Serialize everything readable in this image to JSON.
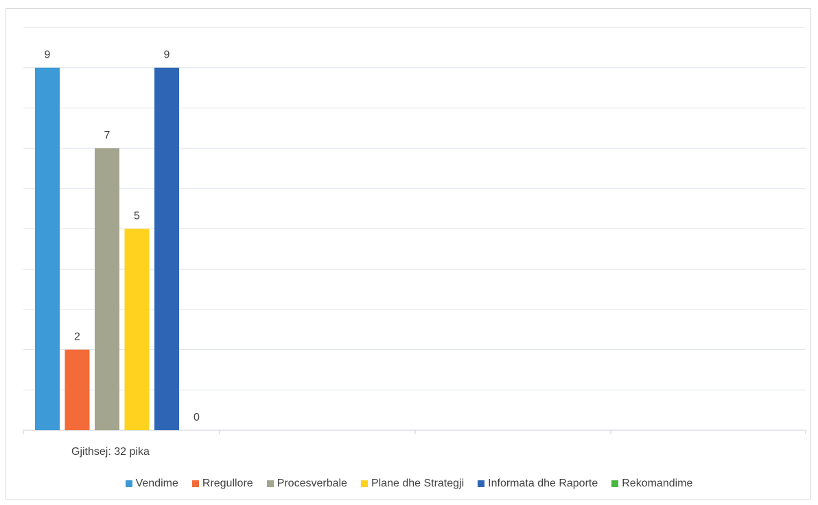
{
  "chart_data": {
    "type": "bar",
    "title": "",
    "xlabel": "",
    "ylabel": "",
    "ylim": [
      0,
      10
    ],
    "grid": true,
    "legend_position": "bottom",
    "series": [
      {
        "name": "Vendime",
        "values": [
          9
        ],
        "color": "#3d9ad6"
      },
      {
        "name": "Rregullore",
        "values": [
          2
        ],
        "color": "#f26b38"
      },
      {
        "name": "Procesverbale",
        "values": [
          7
        ],
        "color": "#a3a58e"
      },
      {
        "name": "Plane dhe Strategji",
        "values": [
          5
        ],
        "color": "#ffd21f"
      },
      {
        "name": "Informata dhe Raporte",
        "values": [
          9
        ],
        "color": "#2e66b5"
      },
      {
        "name": "Rekomandime",
        "values": [
          0
        ],
        "color": "#47b840"
      }
    ],
    "data_labels": [
      "9",
      "2",
      "7",
      "5",
      "9",
      "0"
    ],
    "annotation": "Gjithsej: 32 pika"
  }
}
